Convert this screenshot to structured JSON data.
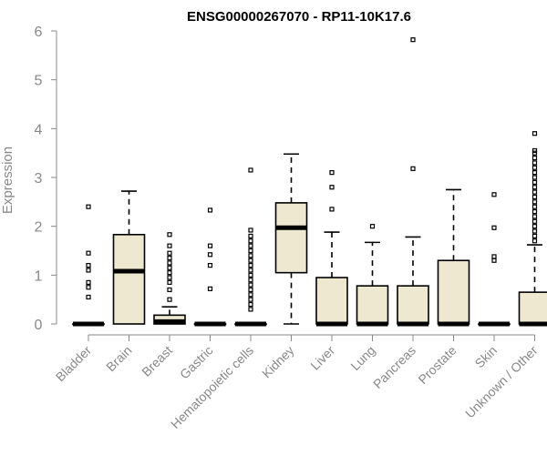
{
  "chart_data": {
    "type": "boxplot",
    "title": "ENSG00000267070 - RP11-10K17.6",
    "xlabel": "",
    "ylabel": "Expression",
    "ylim": [
      0,
      6
    ],
    "yticks": [
      0,
      1,
      2,
      3,
      4,
      5,
      6
    ],
    "grid": false,
    "box_color": "#EEE8D0",
    "axis_color": "#888888",
    "categories": [
      "Bladder",
      "Brain",
      "Breast",
      "Gastric",
      "Hematopoietic cells",
      "Kidney",
      "Liver",
      "Lung",
      "Pancreas",
      "Prostate",
      "Skin",
      "Unknown / Other"
    ],
    "boxes": [
      {
        "category": "Bladder",
        "q1": 0,
        "median": 0,
        "q3": 0,
        "whisker_low": 0,
        "whisker_high": 0,
        "outliers": [
          0.55,
          0.75,
          0.85,
          1.1,
          1.2,
          1.45,
          2.4
        ]
      },
      {
        "category": "Brain",
        "q1": 0,
        "median": 1.08,
        "q3": 1.83,
        "whisker_low": 0,
        "whisker_high": 2.72,
        "outliers": []
      },
      {
        "category": "Breast",
        "q1": 0,
        "median": 0.05,
        "q3": 0.18,
        "whisker_low": 0,
        "whisker_high": 0.35,
        "outliers": [
          0.5,
          0.7,
          0.85,
          0.95,
          1.05,
          1.15,
          1.25,
          1.35,
          1.45,
          1.6,
          1.83
        ]
      },
      {
        "category": "Gastric",
        "q1": 0,
        "median": 0,
        "q3": 0,
        "whisker_low": 0,
        "whisker_high": 0,
        "outliers": [
          0.72,
          1.2,
          1.42,
          1.6,
          2.33
        ]
      },
      {
        "category": "Hematopoietic cells",
        "q1": 0,
        "median": 0,
        "q3": 0,
        "whisker_low": 0,
        "whisker_high": 0,
        "outliers": [
          0.3,
          0.4,
          0.5,
          0.6,
          0.7,
          0.8,
          0.9,
          1.0,
          1.1,
          1.2,
          1.3,
          1.4,
          1.5,
          1.6,
          1.7,
          1.8,
          1.92,
          3.15
        ]
      },
      {
        "category": "Kidney",
        "q1": 1.05,
        "median": 1.97,
        "q3": 2.48,
        "whisker_low": 0,
        "whisker_high": 3.48,
        "outliers": []
      },
      {
        "category": "Liver",
        "q1": 0,
        "median": 0,
        "q3": 0.95,
        "whisker_low": 0,
        "whisker_high": 1.88,
        "outliers": [
          2.35,
          2.8,
          3.1
        ]
      },
      {
        "category": "Lung",
        "q1": 0,
        "median": 0,
        "q3": 0.78,
        "whisker_low": 0,
        "whisker_high": 1.67,
        "outliers": [
          2.0
        ]
      },
      {
        "category": "Pancreas",
        "q1": 0,
        "median": 0,
        "q3": 0.78,
        "whisker_low": 0,
        "whisker_high": 1.78,
        "outliers": [
          3.18,
          5.82
        ]
      },
      {
        "category": "Prostate",
        "q1": 0,
        "median": 0,
        "q3": 1.3,
        "whisker_low": 0,
        "whisker_high": 2.75,
        "outliers": []
      },
      {
        "category": "Skin",
        "q1": 0,
        "median": 0,
        "q3": 0,
        "whisker_low": 0,
        "whisker_high": 0,
        "outliers": [
          1.3,
          1.38,
          1.97,
          2.65
        ]
      },
      {
        "category": "Unknown / Other",
        "q1": 0,
        "median": 0,
        "q3": 0.65,
        "whisker_low": 0,
        "whisker_high": 1.62,
        "outliers": [
          1.7,
          1.8,
          1.9,
          2.0,
          2.1,
          2.2,
          2.3,
          2.4,
          2.5,
          2.6,
          2.7,
          2.8,
          2.9,
          3.0,
          3.1,
          3.2,
          3.3,
          3.4,
          3.5,
          3.55,
          3.9
        ]
      }
    ]
  }
}
